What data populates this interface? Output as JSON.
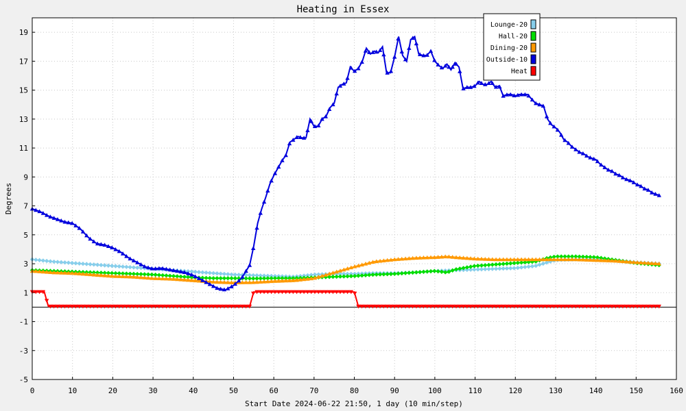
{
  "chart_data": {
    "type": "line",
    "title": "Heating in Essex",
    "xlabel": "Start Date 2024-06-22 21:50, 1 day (10 min/step)",
    "ylabel": "Degrees",
    "xlim": [
      0,
      160
    ],
    "ylim": [
      -5,
      20
    ],
    "x_ticks": [
      0,
      10,
      20,
      30,
      40,
      50,
      60,
      70,
      80,
      90,
      100,
      110,
      120,
      130,
      140,
      150,
      160
    ],
    "y_ticks": [
      -5,
      -3,
      -1,
      1,
      3,
      5,
      7,
      9,
      11,
      13,
      15,
      17,
      19
    ],
    "grid": true,
    "legend_position": "top-right",
    "series": [
      {
        "name": "Lounge-20",
        "color": "#87ceeb",
        "marker": "diamond",
        "points": [
          [
            0,
            3.3
          ],
          [
            5,
            3.15
          ],
          [
            10,
            3.05
          ],
          [
            15,
            2.95
          ],
          [
            20,
            2.85
          ],
          [
            25,
            2.75
          ],
          [
            30,
            2.65
          ],
          [
            35,
            2.55
          ],
          [
            40,
            2.45
          ],
          [
            45,
            2.35
          ],
          [
            50,
            2.25
          ],
          [
            55,
            2.2
          ],
          [
            60,
            2.15
          ],
          [
            65,
            2.1
          ],
          [
            70,
            2.25
          ],
          [
            75,
            2.3
          ],
          [
            80,
            2.3
          ],
          [
            85,
            2.35
          ],
          [
            90,
            2.35
          ],
          [
            95,
            2.4
          ],
          [
            100,
            2.5
          ],
          [
            105,
            2.55
          ],
          [
            110,
            2.6
          ],
          [
            115,
            2.65
          ],
          [
            120,
            2.7
          ],
          [
            125,
            2.85
          ],
          [
            128,
            3.1
          ],
          [
            130,
            3.25
          ],
          [
            135,
            3.3
          ],
          [
            140,
            3.3
          ],
          [
            145,
            3.25
          ],
          [
            150,
            3.1
          ],
          [
            156,
            3.0
          ]
        ]
      },
      {
        "name": "Hall-20",
        "color": "#00dd00",
        "marker": "diamond",
        "points": [
          [
            0,
            2.55
          ],
          [
            5,
            2.5
          ],
          [
            10,
            2.45
          ],
          [
            15,
            2.4
          ],
          [
            20,
            2.35
          ],
          [
            25,
            2.3
          ],
          [
            30,
            2.25
          ],
          [
            35,
            2.15
          ],
          [
            40,
            2.05
          ],
          [
            45,
            2.0
          ],
          [
            50,
            2.0
          ],
          [
            55,
            1.98
          ],
          [
            60,
            2.0
          ],
          [
            65,
            2.0
          ],
          [
            70,
            2.05
          ],
          [
            75,
            2.1
          ],
          [
            80,
            2.15
          ],
          [
            85,
            2.25
          ],
          [
            90,
            2.3
          ],
          [
            95,
            2.4
          ],
          [
            100,
            2.5
          ],
          [
            103,
            2.4
          ],
          [
            105,
            2.6
          ],
          [
            110,
            2.85
          ],
          [
            115,
            2.95
          ],
          [
            120,
            3.05
          ],
          [
            125,
            3.15
          ],
          [
            128,
            3.4
          ],
          [
            130,
            3.5
          ],
          [
            135,
            3.5
          ],
          [
            140,
            3.45
          ],
          [
            145,
            3.25
          ],
          [
            150,
            3.05
          ],
          [
            156,
            2.9
          ]
        ]
      },
      {
        "name": "Dining-20",
        "color": "#ff9900",
        "marker": "triangle-up",
        "points": [
          [
            0,
            2.5
          ],
          [
            5,
            2.4
          ],
          [
            10,
            2.35
          ],
          [
            15,
            2.25
          ],
          [
            20,
            2.15
          ],
          [
            25,
            2.1
          ],
          [
            30,
            2.0
          ],
          [
            35,
            1.95
          ],
          [
            40,
            1.85
          ],
          [
            45,
            1.75
          ],
          [
            50,
            1.7
          ],
          [
            55,
            1.72
          ],
          [
            60,
            1.8
          ],
          [
            65,
            1.85
          ],
          [
            70,
            2.0
          ],
          [
            75,
            2.4
          ],
          [
            80,
            2.8
          ],
          [
            85,
            3.15
          ],
          [
            90,
            3.3
          ],
          [
            95,
            3.4
          ],
          [
            100,
            3.45
          ],
          [
            103,
            3.5
          ],
          [
            105,
            3.45
          ],
          [
            110,
            3.35
          ],
          [
            115,
            3.3
          ],
          [
            120,
            3.3
          ],
          [
            125,
            3.3
          ],
          [
            130,
            3.3
          ],
          [
            135,
            3.3
          ],
          [
            140,
            3.25
          ],
          [
            145,
            3.2
          ],
          [
            150,
            3.1
          ],
          [
            156,
            3.0
          ]
        ]
      },
      {
        "name": "Outside-10",
        "color": "#0000dd",
        "marker": "triangle-up",
        "points": [
          [
            0,
            6.8
          ],
          [
            2,
            6.6
          ],
          [
            4,
            6.3
          ],
          [
            6,
            6.1
          ],
          [
            8,
            5.9
          ],
          [
            10,
            5.8
          ],
          [
            12,
            5.4
          ],
          [
            14,
            4.8
          ],
          [
            16,
            4.4
          ],
          [
            18,
            4.3
          ],
          [
            20,
            4.1
          ],
          [
            22,
            3.8
          ],
          [
            24,
            3.4
          ],
          [
            26,
            3.1
          ],
          [
            28,
            2.8
          ],
          [
            30,
            2.65
          ],
          [
            32,
            2.7
          ],
          [
            34,
            2.6
          ],
          [
            36,
            2.5
          ],
          [
            38,
            2.4
          ],
          [
            40,
            2.2
          ],
          [
            42,
            1.9
          ],
          [
            44,
            1.6
          ],
          [
            46,
            1.3
          ],
          [
            48,
            1.2
          ],
          [
            50,
            1.5
          ],
          [
            52,
            2.0
          ],
          [
            54,
            2.9
          ],
          [
            55,
            4.2
          ],
          [
            56,
            5.8
          ],
          [
            57,
            6.8
          ],
          [
            58,
            7.6
          ],
          [
            59,
            8.5
          ],
          [
            60,
            9.1
          ],
          [
            61,
            9.6
          ],
          [
            62,
            10.1
          ],
          [
            63,
            10.5
          ],
          [
            64,
            11.4
          ],
          [
            65,
            11.6
          ],
          [
            66,
            11.8
          ],
          [
            67,
            11.7
          ],
          [
            68,
            11.7
          ],
          [
            69,
            13.0
          ],
          [
            70,
            12.5
          ],
          [
            71,
            12.5
          ],
          [
            72,
            13.0
          ],
          [
            73,
            13.2
          ],
          [
            74,
            13.8
          ],
          [
            75,
            14.1
          ],
          [
            76,
            15.2
          ],
          [
            77,
            15.4
          ],
          [
            78,
            15.5
          ],
          [
            79,
            16.6
          ],
          [
            80,
            16.3
          ],
          [
            81,
            16.5
          ],
          [
            82,
            17.0
          ],
          [
            83,
            17.9
          ],
          [
            84,
            17.5
          ],
          [
            85,
            17.7
          ],
          [
            86,
            17.6
          ],
          [
            87,
            18.0
          ],
          [
            88,
            16.2
          ],
          [
            89,
            16.2
          ],
          [
            90,
            17.3
          ],
          [
            91,
            18.7
          ],
          [
            92,
            17.4
          ],
          [
            93,
            17.0
          ],
          [
            94,
            18.5
          ],
          [
            95,
            18.7
          ],
          [
            96,
            17.5
          ],
          [
            97,
            17.4
          ],
          [
            98,
            17.4
          ],
          [
            99,
            17.7
          ],
          [
            100,
            17.0
          ],
          [
            101,
            16.7
          ],
          [
            102,
            16.5
          ],
          [
            103,
            16.8
          ],
          [
            104,
            16.4
          ],
          [
            105,
            16.9
          ],
          [
            106,
            16.6
          ],
          [
            107,
            15.1
          ],
          [
            108,
            15.2
          ],
          [
            109,
            15.2
          ],
          [
            110,
            15.3
          ],
          [
            111,
            15.6
          ],
          [
            112,
            15.4
          ],
          [
            113,
            15.4
          ],
          [
            114,
            15.6
          ],
          [
            115,
            15.2
          ],
          [
            116,
            15.3
          ],
          [
            117,
            14.6
          ],
          [
            118,
            14.7
          ],
          [
            119,
            14.7
          ],
          [
            120,
            14.6
          ],
          [
            121,
            14.7
          ],
          [
            122,
            14.7
          ],
          [
            123,
            14.7
          ],
          [
            124,
            14.4
          ],
          [
            125,
            14.1
          ],
          [
            126,
            14.0
          ],
          [
            127,
            13.9
          ],
          [
            128,
            13.0
          ],
          [
            129,
            12.6
          ],
          [
            130,
            12.4
          ],
          [
            131,
            12.1
          ],
          [
            132,
            11.6
          ],
          [
            133,
            11.4
          ],
          [
            134,
            11.1
          ],
          [
            135,
            10.9
          ],
          [
            136,
            10.7
          ],
          [
            137,
            10.6
          ],
          [
            138,
            10.4
          ],
          [
            139,
            10.3
          ],
          [
            140,
            10.2
          ],
          [
            141,
            9.9
          ],
          [
            142,
            9.7
          ],
          [
            143,
            9.5
          ],
          [
            144,
            9.4
          ],
          [
            145,
            9.2
          ],
          [
            146,
            9.1
          ],
          [
            147,
            8.9
          ],
          [
            148,
            8.8
          ],
          [
            149,
            8.7
          ],
          [
            150,
            8.5
          ],
          [
            151,
            8.4
          ],
          [
            152,
            8.2
          ],
          [
            153,
            8.1
          ],
          [
            154,
            7.9
          ],
          [
            155,
            7.8
          ],
          [
            156,
            7.7
          ]
        ]
      },
      {
        "name": "Heat",
        "color": "#ff0000",
        "marker": "triangle-down",
        "points": [
          [
            0,
            1.05
          ],
          [
            1,
            1.05
          ],
          [
            2,
            1.05
          ],
          [
            3,
            1.05
          ],
          [
            4,
            0.05
          ],
          [
            10,
            0.05
          ],
          [
            20,
            0.05
          ],
          [
            30,
            0.05
          ],
          [
            40,
            0.05
          ],
          [
            50,
            0.05
          ],
          [
            54,
            0.05
          ],
          [
            55,
            1.05
          ],
          [
            60,
            1.05
          ],
          [
            65,
            1.05
          ],
          [
            70,
            1.05
          ],
          [
            75,
            1.05
          ],
          [
            80,
            1.05
          ],
          [
            81,
            0.05
          ],
          [
            90,
            0.05
          ],
          [
            100,
            0.05
          ],
          [
            110,
            0.05
          ],
          [
            120,
            0.05
          ],
          [
            130,
            0.05
          ],
          [
            140,
            0.05
          ],
          [
            150,
            0.05
          ],
          [
            156,
            0.05
          ]
        ]
      }
    ]
  }
}
